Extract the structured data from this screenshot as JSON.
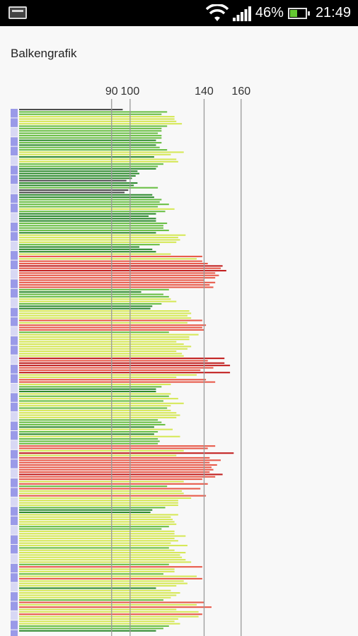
{
  "status_bar": {
    "battery_pct": "46%",
    "time": "21:49",
    "battery_level": 0.46
  },
  "header": {
    "title": "Balkengrafik"
  },
  "colors": {
    "very_low": "#4d4d4d",
    "low": "#2e8b2e",
    "mid_low": "#6abf45",
    "mid": "#d6e858",
    "high": "#e85a4a",
    "very_high": "#c22020",
    "gridline": "#9a9a9a",
    "marker_dark": "#9a9ae8",
    "marker_light": "#d8d8f4"
  },
  "chart_data": {
    "type": "bar",
    "orientation": "horizontal",
    "title": "Balkengrafik",
    "xlabel": "",
    "ylabel": "",
    "xlim": [
      40,
      175
    ],
    "reference_lines": [
      90,
      100,
      140,
      160
    ],
    "tick_labels": [
      "90",
      "100",
      "140",
      "160"
    ],
    "grid": false,
    "legend": "none",
    "values": [
      96,
      120,
      117,
      124,
      124,
      125,
      128,
      120,
      117,
      117,
      115,
      117,
      117,
      114,
      117,
      114,
      116,
      120,
      129,
      122,
      113,
      125,
      126,
      118,
      115,
      114,
      104,
      105,
      103,
      101,
      98,
      104,
      102,
      115,
      99,
      97,
      112,
      113,
      117,
      116,
      121,
      115,
      124,
      119,
      114,
      110,
      114,
      114,
      120,
      118,
      118,
      121,
      114,
      130,
      126,
      127,
      125,
      116,
      105,
      112,
      114,
      122,
      139,
      136,
      139,
      142,
      150,
      149,
      152,
      146,
      148,
      146,
      140,
      146,
      143,
      145,
      121,
      106,
      118,
      121,
      122,
      125,
      117,
      112,
      111,
      132,
      133,
      131,
      133,
      139,
      131,
      141,
      139,
      140,
      121,
      137,
      132,
      132,
      125,
      129,
      133,
      131,
      125,
      128,
      129,
      151,
      142,
      151,
      154,
      145,
      138,
      154,
      136,
      125,
      141,
      146,
      122,
      117,
      114,
      114,
      122,
      121,
      126,
      118,
      129,
      122,
      120,
      122,
      125,
      127,
      125,
      115,
      117,
      119,
      113,
      123,
      115,
      113,
      127,
      115,
      116,
      115,
      146,
      142,
      129,
      156,
      125,
      143,
      149,
      143,
      147,
      144,
      145,
      143,
      150,
      146,
      139,
      129,
      142,
      120,
      138,
      128,
      129,
      141,
      133,
      126,
      126,
      126,
      119,
      112,
      111,
      126,
      122,
      123,
      124,
      125,
      121,
      117,
      124,
      124,
      130,
      124,
      126,
      122,
      131,
      121,
      124,
      130,
      127,
      128,
      130,
      133,
      121,
      139,
      124,
      124,
      118,
      136,
      139,
      129,
      131,
      125,
      114,
      122,
      127,
      125,
      122,
      118,
      140,
      136,
      144,
      125,
      137,
      139,
      137,
      126,
      124,
      127,
      121,
      118,
      114
    ]
  }
}
